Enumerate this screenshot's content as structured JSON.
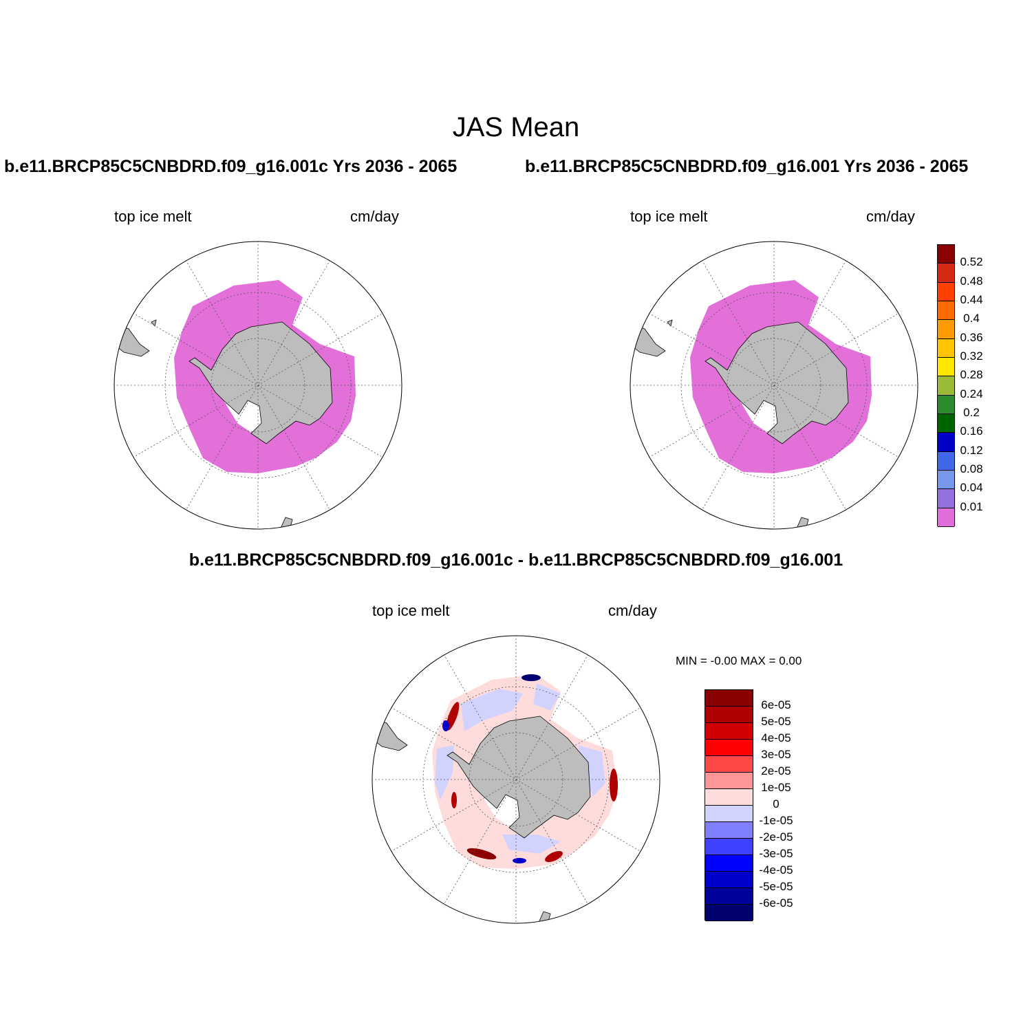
{
  "title": "JAS Mean",
  "panels": [
    {
      "id": "case",
      "title": "b.e11.BRCP85C5CNBDRD.f09_g16.001c  Yrs 2036 - 2065",
      "left_label": "top ice melt",
      "right_label": "cm/day"
    },
    {
      "id": "control",
      "title": "b.e11.BRCP85C5CNBDRD.f09_g16.001  Yrs 2036 - 2065",
      "left_label": "top ice melt",
      "right_label": "cm/day"
    },
    {
      "id": "difference",
      "title": "b.e11.BRCP85C5CNBDRD.f09_g16.001c - b.e11.BRCP85C5CNBDRD.f09_g16.001",
      "left_label": "top ice melt",
      "right_label": "cm/day",
      "min_max": "MIN =  -0.00 MAX =   0.00"
    }
  ],
  "colorbar_main": {
    "labels": [
      "0.52",
      "0.48",
      "0.44",
      "0.4",
      "0.36",
      "0.32",
      "0.28",
      "0.24",
      "0.2",
      "0.16",
      "0.12",
      "0.08",
      "0.04",
      "0.01"
    ],
    "colors": [
      "#8b0000",
      "#d42a12",
      "#ff4000",
      "#ff6a00",
      "#ff9a00",
      "#ffc400",
      "#ffe600",
      "#9aba38",
      "#2a8c2a",
      "#006400",
      "#0000c8",
      "#4068e8",
      "#7898f0",
      "#9370db",
      "#e06ed8"
    ]
  },
  "colorbar_diff": {
    "labels": [
      "6e-05",
      "5e-05",
      "4e-05",
      "3e-05",
      "2e-05",
      "1e-05",
      "0",
      "-1e-05",
      "-2e-05",
      "-3e-05",
      "-4e-05",
      "-5e-05",
      "-6e-05"
    ],
    "colors": [
      "#8b0000",
      "#b00000",
      "#d20000",
      "#ff0000",
      "#ff4848",
      "#ff9696",
      "#ffdcdc",
      "#d2d2ff",
      "#8080ff",
      "#4040ff",
      "#0000ff",
      "#0000cc",
      "#00009a",
      "#000070"
    ]
  },
  "styles": {
    "ice_color": "#e270d8",
    "land_color": "#bdbdbd",
    "outline_color": "#000000"
  }
}
